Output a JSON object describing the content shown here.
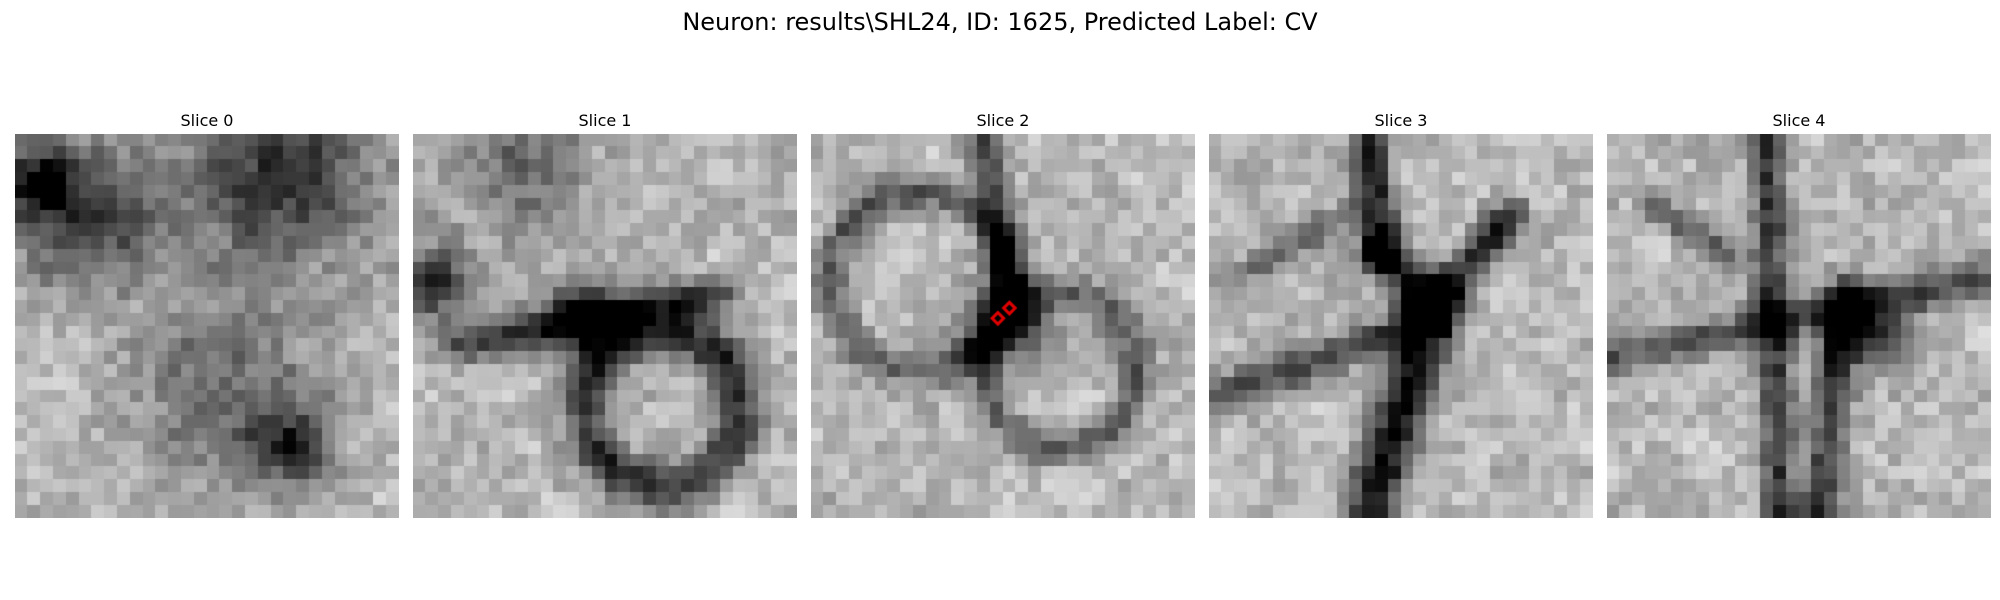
{
  "figure": {
    "title": "Neuron: results\\SHL24, ID: 1625, Predicted Label: CV"
  },
  "panels": [
    {
      "title": "Slice 0",
      "seed": 11,
      "features": [
        {
          "kind": "blob",
          "cx": 5,
          "cy": 6,
          "r": 4,
          "d": 0.5
        },
        {
          "kind": "blob",
          "cx": 20,
          "cy": 3,
          "r": 5,
          "d": 0.55
        },
        {
          "kind": "blob",
          "cx": 16,
          "cy": 20,
          "r": 5,
          "d": 0.35
        },
        {
          "kind": "dark",
          "cx": 21,
          "cy": 24,
          "r": 2,
          "d": 0.5
        },
        {
          "kind": "dark",
          "cx": 1,
          "cy": 3,
          "r": 2,
          "d": 0.5
        }
      ]
    },
    {
      "title": "Slice 1",
      "seed": 23,
      "features": [
        {
          "kind": "ring",
          "cx": 19,
          "cy": 21,
          "r": 6,
          "w": 1.3,
          "d": 0.55
        },
        {
          "kind": "line",
          "x1": 3,
          "y1": 16,
          "x2": 23,
          "y2": 12,
          "w": 1.0,
          "d": 0.5
        },
        {
          "kind": "dark",
          "cx": 13,
          "cy": 14,
          "r": 2,
          "d": 0.7
        },
        {
          "kind": "dark",
          "cx": 1,
          "cy": 11,
          "r": 2,
          "d": 0.55
        },
        {
          "kind": "blob",
          "cx": 8,
          "cy": 2,
          "r": 4,
          "d": 0.3
        }
      ]
    },
    {
      "title": "Slice 2",
      "seed": 37,
      "features": [
        {
          "kind": "ring",
          "cx": 8,
          "cy": 11,
          "r": 7,
          "w": 1.0,
          "d": 0.35
        },
        {
          "kind": "ring",
          "cx": 19,
          "cy": 18,
          "r": 6,
          "w": 1.0,
          "d": 0.35
        },
        {
          "kind": "dark",
          "cx": 15,
          "cy": 14,
          "r": 2,
          "d": 0.65
        },
        {
          "kind": "line",
          "x1": 13,
          "y1": 0,
          "x2": 15,
          "y2": 12,
          "w": 1.0,
          "d": 0.45
        }
      ],
      "markers": [
        {
          "x": 14.6,
          "y": 14.4
        },
        {
          "x": 15.5,
          "y": 13.6
        }
      ]
    },
    {
      "title": "Slice 3",
      "seed": 51,
      "features": [
        {
          "kind": "line",
          "x1": 12,
          "y1": 0,
          "x2": 13,
          "y2": 9,
          "w": 1.0,
          "d": 0.6
        },
        {
          "kind": "line",
          "x1": 13,
          "y1": 9,
          "x2": 17,
          "y2": 13,
          "w": 1.2,
          "d": 0.55
        },
        {
          "kind": "line",
          "x1": 17,
          "y1": 13,
          "x2": 12,
          "y2": 29,
          "w": 1.5,
          "d": 0.65
        },
        {
          "kind": "line",
          "x1": 17,
          "y1": 13,
          "x2": 23,
          "y2": 6,
          "w": 1.0,
          "d": 0.55
        },
        {
          "kind": "line",
          "x1": 0,
          "y1": 20,
          "x2": 17,
          "y2": 14,
          "w": 1.0,
          "d": 0.45
        },
        {
          "kind": "line",
          "x1": 3,
          "y1": 10,
          "x2": 10,
          "y2": 6,
          "w": 0.8,
          "d": 0.35
        }
      ]
    },
    {
      "title": "Slice 4",
      "seed": 67,
      "features": [
        {
          "kind": "line",
          "x1": 12,
          "y1": 0,
          "x2": 13,
          "y2": 29,
          "w": 1.0,
          "d": 0.5
        },
        {
          "kind": "line",
          "x1": 0,
          "y1": 17,
          "x2": 29,
          "y2": 11,
          "w": 1.0,
          "d": 0.4
        },
        {
          "kind": "line",
          "x1": 18,
          "y1": 12,
          "x2": 16,
          "y2": 29,
          "w": 1.0,
          "d": 0.5
        },
        {
          "kind": "dark",
          "cx": 20,
          "cy": 15,
          "r": 2,
          "d": 0.55
        },
        {
          "kind": "line",
          "x1": 3,
          "y1": 5,
          "x2": 9,
          "y2": 9,
          "w": 0.8,
          "d": 0.35
        }
      ]
    }
  ]
}
